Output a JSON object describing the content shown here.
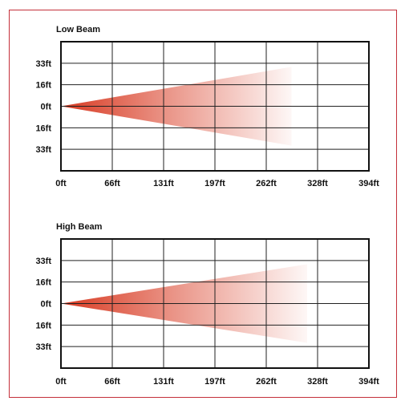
{
  "accent_color": "#c4303a",
  "beam_color": "#d83a22",
  "chart_data": [
    {
      "type": "area",
      "title": "Low Beam",
      "xlabel": "",
      "ylabel": "",
      "x_ticks": [
        "0ft",
        "66ft",
        "131ft",
        "197ft",
        "262ft",
        "328ft",
        "394ft"
      ],
      "y_ticks": [
        "33ft",
        "16ft",
        "0ft",
        "16ft",
        "33ft"
      ],
      "xlim": [
        0,
        394
      ],
      "ylim": [
        -41,
        41
      ],
      "grid": true,
      "beam": {
        "x_start": 0,
        "x_end": 295,
        "spread_top": 25,
        "spread_bottom": -25
      }
    },
    {
      "type": "area",
      "title": "High Beam",
      "xlabel": "",
      "ylabel": "",
      "x_ticks": [
        "0ft",
        "66ft",
        "131ft",
        "197ft",
        "262ft",
        "328ft",
        "394ft"
      ],
      "y_ticks": [
        "33ft",
        "16ft",
        "0ft",
        "16ft",
        "33ft"
      ],
      "xlim": [
        0,
        394
      ],
      "ylim": [
        -41,
        41
      ],
      "grid": true,
      "beam": {
        "x_start": 0,
        "x_end": 315,
        "spread_top": 25,
        "spread_bottom": -25
      }
    }
  ]
}
